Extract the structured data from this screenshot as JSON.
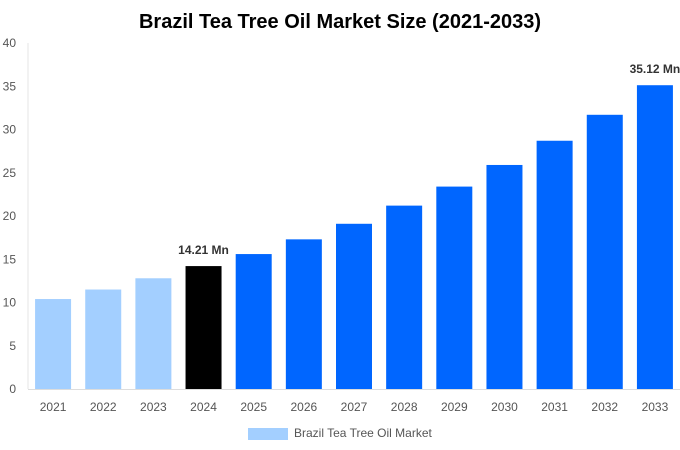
{
  "chart_data": {
    "type": "bar",
    "title": "Brazil Tea Tree Oil Market Size (2021-2033)",
    "categories": [
      "2021",
      "2022",
      "2023",
      "2024",
      "2025",
      "2026",
      "2027",
      "2028",
      "2029",
      "2030",
      "2031",
      "2032",
      "2033"
    ],
    "series": [
      {
        "name": "Brazil Tea Tree Oil Market",
        "values": [
          10.4,
          11.5,
          12.8,
          14.21,
          15.6,
          17.3,
          19.1,
          21.2,
          23.4,
          25.9,
          28.7,
          31.7,
          35.12
        ]
      }
    ],
    "data_labels": {
      "3": "14.21 Mn",
      "12": "35.12 Mn"
    },
    "bar_colors": {
      "historical": "#a3cfff",
      "base_year": "#000000",
      "forecast": "#0066ff"
    },
    "ylim": [
      0,
      40
    ],
    "yticks": [
      0,
      5,
      10,
      15,
      20,
      25,
      30,
      35,
      40
    ],
    "grid": false,
    "legend": "bottom-center",
    "xlabel": "",
    "ylabel": ""
  }
}
